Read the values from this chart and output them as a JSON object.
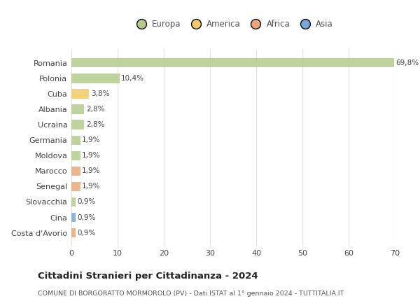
{
  "countries": [
    "Romania",
    "Polonia",
    "Cuba",
    "Albania",
    "Ucraina",
    "Germania",
    "Moldova",
    "Marocco",
    "Senegal",
    "Slovacchia",
    "Cina",
    "Costa d'Avorio"
  ],
  "values": [
    69.8,
    10.4,
    3.8,
    2.8,
    2.8,
    1.9,
    1.9,
    1.9,
    1.9,
    0.9,
    0.9,
    0.9
  ],
  "labels": [
    "69,8%",
    "10,4%",
    "3,8%",
    "2,8%",
    "2,8%",
    "1,9%",
    "1,9%",
    "1,9%",
    "1,9%",
    "0,9%",
    "0,9%",
    "0,9%"
  ],
  "colors": [
    "#b5cc8e",
    "#b5cc8e",
    "#f0c96a",
    "#b5cc8e",
    "#b5cc8e",
    "#b5cc8e",
    "#b5cc8e",
    "#e8a87c",
    "#e8a87c",
    "#b5cc8e",
    "#7ba7d4",
    "#e8a87c"
  ],
  "legend_labels": [
    "Europa",
    "America",
    "Africa",
    "Asia"
  ],
  "legend_colors": [
    "#b5cc8e",
    "#f0c96a",
    "#e8a87c",
    "#7ba7d4"
  ],
  "title": "Cittadini Stranieri per Cittadinanza - 2024",
  "subtitle": "COMUNE DI BORGORATTO MORMOROLO (PV) - Dati ISTAT al 1° gennaio 2024 - TUTTITALIA.IT",
  "xlim": [
    0,
    70
  ],
  "xticks": [
    0,
    10,
    20,
    30,
    40,
    50,
    60,
    70
  ],
  "bg_color": "#ffffff",
  "plot_bg_color": "#ffffff",
  "grid_color": "#e0e0e0",
  "bar_height": 0.6
}
